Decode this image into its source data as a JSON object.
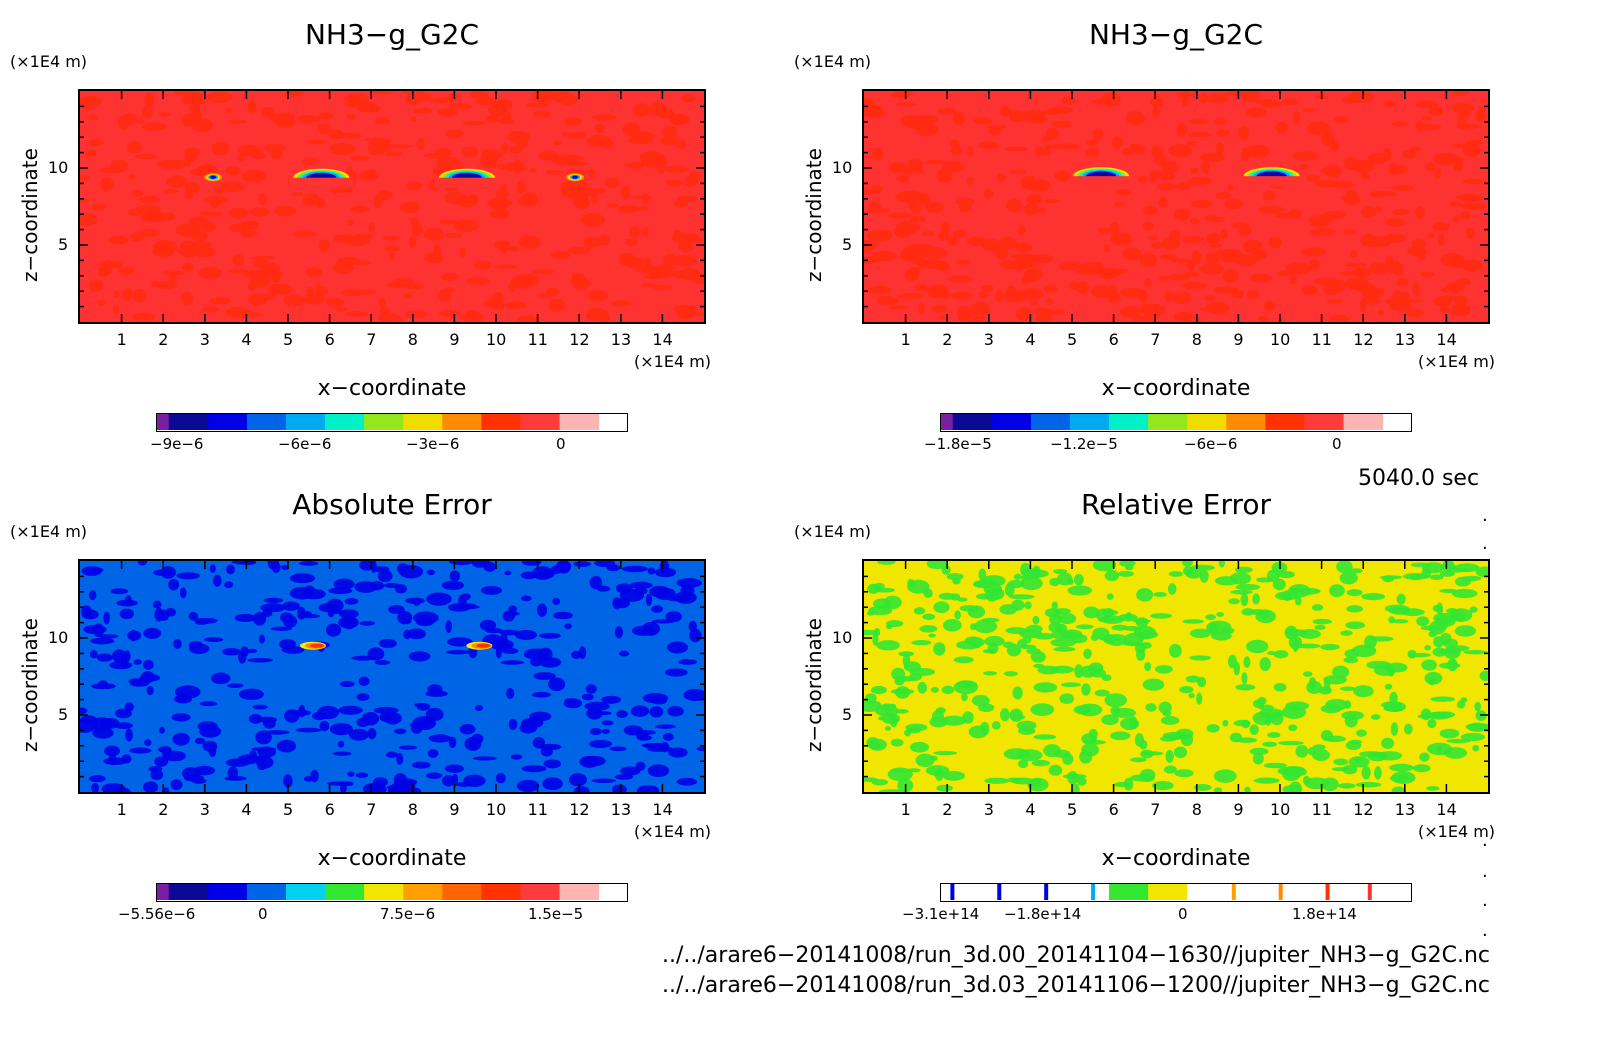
{
  "chart_data": [
    {
      "type": "heatmap",
      "title": "NH3−g_G2C",
      "xlabel": "x−coordinate",
      "ylabel": "z−coordinate",
      "x_unit": "(×1E4 m)",
      "y_unit": "(×1E4 m)",
      "x_ticks": [
        "1",
        "2",
        "3",
        "4",
        "5",
        "6",
        "7",
        "8",
        "9",
        "10",
        "11",
        "12",
        "13",
        "14"
      ],
      "y_ticks": [
        "5",
        "10"
      ],
      "xlim": [
        0,
        15
      ],
      "ylim": [
        0,
        15
      ],
      "colorbar_ticks": [
        "−9e−6",
        "−6e−6",
        "−3e−6",
        "0"
      ],
      "colorbar_colors": [
        "#7a1fa2",
        "#0a0a96",
        "#0000e6",
        "#0064e6",
        "#00aaf0",
        "#00f0c8",
        "#96e61e",
        "#f0dc00",
        "#ff8c00",
        "#ff3200",
        "#ff3c3c",
        "#ffb4b4"
      ],
      "background_color": "#ff3232",
      "features": [
        {
          "x": 3.2,
          "z": 9.4,
          "shape": "small blob"
        },
        {
          "x": 5.8,
          "z": 9.5,
          "shape": "arc"
        },
        {
          "x": 9.3,
          "z": 9.5,
          "shape": "arc"
        },
        {
          "x": 11.9,
          "z": 9.4,
          "shape": "small blob"
        }
      ]
    },
    {
      "type": "heatmap",
      "title": "NH3−g_G2C",
      "xlabel": "x−coordinate",
      "ylabel": "z−coordinate",
      "x_unit": "(×1E4 m)",
      "y_unit": "(×1E4 m)",
      "x_ticks": [
        "1",
        "2",
        "3",
        "4",
        "5",
        "6",
        "7",
        "8",
        "9",
        "10",
        "11",
        "12",
        "13",
        "14"
      ],
      "y_ticks": [
        "5",
        "10"
      ],
      "xlim": [
        0,
        15
      ],
      "ylim": [
        0,
        15
      ],
      "colorbar_ticks": [
        "−1.8e−5",
        "−1.2e−5",
        "−6e−6",
        "0"
      ],
      "colorbar_colors": [
        "#7a1fa2",
        "#0a0a96",
        "#0000e6",
        "#0064e6",
        "#00aaf0",
        "#00f0c8",
        "#96e61e",
        "#f0dc00",
        "#ff8c00",
        "#ff3200",
        "#ff3c3c",
        "#ffb4b4"
      ],
      "background_color": "#ff3232",
      "features": [
        {
          "x": 5.7,
          "z": 9.6,
          "shape": "arc"
        },
        {
          "x": 9.8,
          "z": 9.6,
          "shape": "arc"
        }
      ]
    },
    {
      "type": "heatmap",
      "title": "Absolute Error",
      "xlabel": "x−coordinate",
      "ylabel": "z−coordinate",
      "x_unit": "(×1E4 m)",
      "y_unit": "(×1E4 m)",
      "x_ticks": [
        "1",
        "2",
        "3",
        "4",
        "5",
        "6",
        "7",
        "8",
        "9",
        "10",
        "11",
        "12",
        "13",
        "14"
      ],
      "y_ticks": [
        "5",
        "10"
      ],
      "xlim": [
        0,
        15
      ],
      "ylim": [
        0,
        15
      ],
      "colorbar_ticks": [
        "−5.56e−6",
        "0",
        "7.5e−6",
        "1.5e−5"
      ],
      "colorbar_colors": [
        "#7a1fa2",
        "#0a0a96",
        "#0000e6",
        "#0064e6",
        "#00d2f0",
        "#32e632",
        "#f0e600",
        "#ffa000",
        "#ff6400",
        "#ff3200",
        "#ff3c3c",
        "#ffb4b4"
      ],
      "background_color": "#0064e6",
      "features": [
        {
          "x": 5.6,
          "z": 9.5,
          "shape": "small streak"
        },
        {
          "x": 9.6,
          "z": 9.5,
          "shape": "small streak"
        }
      ]
    },
    {
      "type": "heatmap",
      "title": "Relative Error",
      "xlabel": "x−coordinate",
      "ylabel": "z−coordinate",
      "x_unit": "(×1E4 m)",
      "y_unit": "(×1E4 m)",
      "x_ticks": [
        "1",
        "2",
        "3",
        "4",
        "5",
        "6",
        "7",
        "8",
        "9",
        "10",
        "11",
        "12",
        "13",
        "14"
      ],
      "y_ticks": [
        "5",
        "10"
      ],
      "xlim": [
        0,
        15
      ],
      "ylim": [
        0,
        15
      ],
      "colorbar_ticks": [
        "−3.1e+14",
        "−1.8e+14",
        "0",
        "1.8e+14"
      ],
      "colorbar_colors": [
        "#ffffff",
        "#ffffff",
        "#ffffff",
        "#ffffff",
        "#ffffff",
        "#32e632",
        "#f0e600",
        "#ffffff",
        "#ffffff",
        "#ffffff",
        "#ffffff",
        "#ffffff"
      ],
      "background_color": "#f0e600",
      "features": []
    }
  ],
  "time_label": "5040.0 sec",
  "file_paths": [
    "../../arare6−20141008/run_3d.00_20141104−1630//jupiter_NH3−g_G2C.nc",
    "../../arare6−20141008/run_3d.03_20141106−1200//jupiter_NH3−g_G2C.nc"
  ]
}
